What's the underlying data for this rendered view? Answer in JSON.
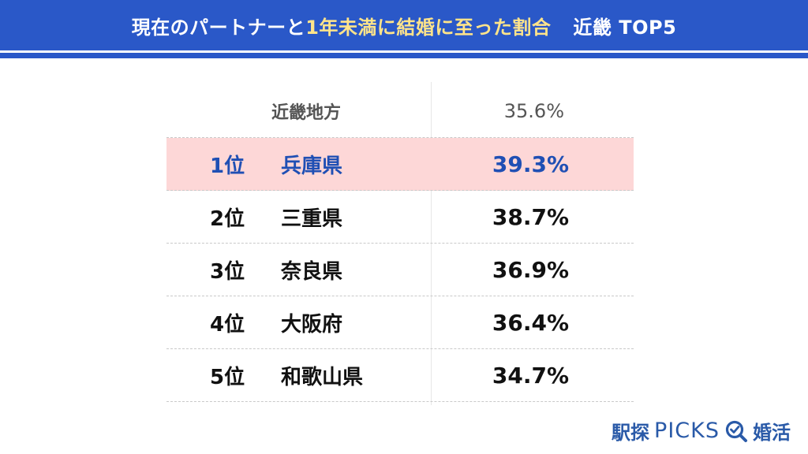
{
  "header": {
    "title_part1": "現在のパートナーと",
    "title_part2": "1年未満に結婚に至った割合",
    "title_part3": "近畿 TOP5",
    "accent_color": "#2a58c8",
    "highlight_text_color": "#ffe48a"
  },
  "chart_data": {
    "type": "table",
    "columns": [
      "",
      "",
      ""
    ],
    "reference": {
      "label": "近畿地方",
      "value": "35.6%"
    },
    "rows": [
      {
        "rank": "1位",
        "prefecture": "兵庫県",
        "value": "39.3%",
        "highlight": true
      },
      {
        "rank": "2位",
        "prefecture": "三重県",
        "value": "38.7%",
        "highlight": false
      },
      {
        "rank": "3位",
        "prefecture": "奈良県",
        "value": "36.9%",
        "highlight": false
      },
      {
        "rank": "4位",
        "prefecture": "大阪府",
        "value": "36.4%",
        "highlight": false
      },
      {
        "rank": "5位",
        "prefecture": "和歌山県",
        "value": "34.7%",
        "highlight": false
      }
    ],
    "highlight_bg": "#fdd7d7",
    "highlight_text": "#1f4fb4"
  },
  "logo": {
    "jp_left": "駅探",
    "en": "PICKS",
    "jp_right": "婚活",
    "icon": "magnifier-check-icon",
    "color": "#2a5aa8"
  }
}
